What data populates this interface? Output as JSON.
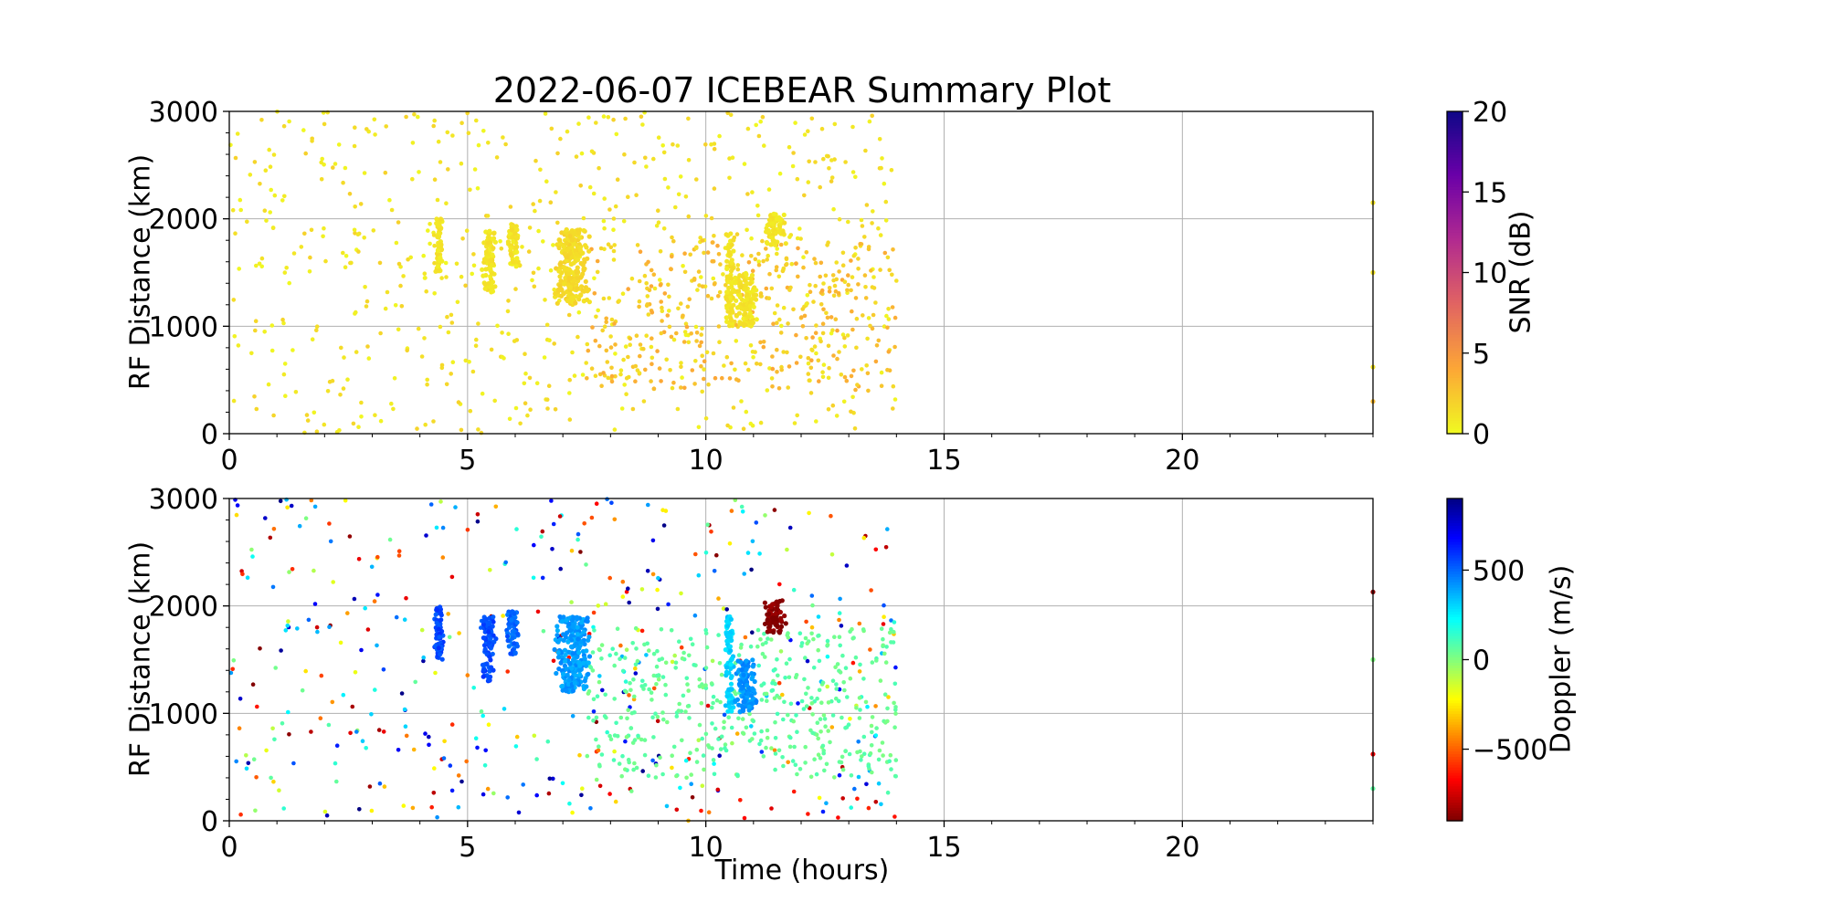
{
  "chart_data": [
    {
      "type": "scatter",
      "title": "2022-06-07 ICEBEAR Summary Plot",
      "xlabel": "",
      "ylabel": "RF Distance (km)",
      "xlim": [
        0,
        24
      ],
      "ylim": [
        0,
        3000
      ],
      "xticks": [
        0,
        5,
        10,
        15,
        20
      ],
      "xtick_labels": [
        "0",
        "5",
        "10",
        "15",
        "20"
      ],
      "yticks": [
        0,
        1000,
        2000,
        3000
      ],
      "ytick_labels": [
        "0",
        "1000",
        "2000",
        "3000"
      ],
      "grid": true,
      "colorbar": {
        "label": "SNR (dB)",
        "range": [
          0,
          20
        ],
        "ticks": [
          0,
          5,
          10,
          15,
          20
        ],
        "tick_labels": [
          "0",
          "5",
          "10",
          "15",
          "20"
        ],
        "colormap": "plasma_r",
        "colors": [
          "#f0f921",
          "#fca636",
          "#e16462",
          "#b12a90",
          "#6a00a8",
          "#0d0887"
        ]
      },
      "clusters": [
        {
          "x": [
            4.3,
            4.5
          ],
          "y": [
            1500,
            2000
          ],
          "value": 1
        },
        {
          "x": [
            5.3,
            5.6
          ],
          "y": [
            1300,
            1900
          ],
          "value": 1
        },
        {
          "x": [
            5.8,
            6.1
          ],
          "y": [
            1550,
            1950
          ],
          "value": 1
        },
        {
          "x": [
            6.8,
            7.6
          ],
          "y": [
            1200,
            1900
          ],
          "value": 1.5
        },
        {
          "x": [
            10.4,
            10.6
          ],
          "y": [
            1000,
            1900
          ],
          "value": 1
        },
        {
          "x": [
            10.6,
            11.1
          ],
          "y": [
            1000,
            1500
          ],
          "value": 1
        },
        {
          "x": [
            11.2,
            11.7
          ],
          "y": [
            1750,
            2050
          ],
          "value": 1
        }
      ],
      "scatter_regions": [
        {
          "x": [
            0,
            14
          ],
          "y": [
            0,
            3000
          ],
          "count": 650,
          "value_range": [
            0,
            2
          ]
        },
        {
          "x": [
            7.5,
            14
          ],
          "y": [
            400,
            1800
          ],
          "count": 350,
          "value_range": [
            1,
            4
          ]
        }
      ],
      "isolated_points": [
        {
          "x": 24,
          "y": 2150,
          "value": 1
        },
        {
          "x": 24,
          "y": 1500,
          "value": 1
        },
        {
          "x": 24,
          "y": 620,
          "value": 1
        },
        {
          "x": 24,
          "y": 300,
          "value": 3
        }
      ]
    },
    {
      "type": "scatter",
      "title": "",
      "xlabel": "Time (hours)",
      "ylabel": "RF Distance (km)",
      "xlim": [
        0,
        24
      ],
      "ylim": [
        0,
        3000
      ],
      "xticks": [
        0,
        5,
        10,
        15,
        20
      ],
      "xtick_labels": [
        "0",
        "5",
        "10",
        "15",
        "20"
      ],
      "yticks": [
        0,
        1000,
        2000,
        3000
      ],
      "ytick_labels": [
        "0",
        "1000",
        "2000",
        "3000"
      ],
      "grid": true,
      "colorbar": {
        "label": "Doppler (m/s)",
        "range": [
          -900,
          900
        ],
        "ticks": [
          -500,
          0,
          500
        ],
        "tick_labels": [
          "−500",
          "0",
          "500"
        ],
        "colormap": "jet_r",
        "colors": [
          "#7f0000",
          "#ff0000",
          "#ff8000",
          "#ffff00",
          "#80ff80",
          "#00ffff",
          "#0080ff",
          "#0000ff",
          "#00007f"
        ]
      },
      "clusters": [
        {
          "x": [
            4.3,
            4.5
          ],
          "y": [
            1500,
            2000
          ],
          "value": 550
        },
        {
          "x": [
            5.3,
            5.6
          ],
          "y": [
            1300,
            1900
          ],
          "value": 550
        },
        {
          "x": [
            5.8,
            6.1
          ],
          "y": [
            1550,
            1950
          ],
          "value": 500
        },
        {
          "x": [
            6.8,
            7.6
          ],
          "y": [
            1200,
            1900
          ],
          "value": 400
        },
        {
          "x": [
            10.4,
            10.6
          ],
          "y": [
            1000,
            1900
          ],
          "value": 300
        },
        {
          "x": [
            10.6,
            11.1
          ],
          "y": [
            1000,
            1500
          ],
          "value": 420
        },
        {
          "x": [
            11.2,
            11.7
          ],
          "y": [
            1750,
            2050
          ],
          "value": -880
        }
      ],
      "scatter_regions": [
        {
          "x": [
            0,
            14
          ],
          "y": [
            0,
            3000
          ],
          "count": 450,
          "value_range": [
            -900,
            900
          ]
        },
        {
          "x": [
            7.5,
            14
          ],
          "y": [
            400,
            1800
          ],
          "count": 450,
          "value_range": [
            0,
            100
          ]
        }
      ],
      "isolated_points": [
        {
          "x": 24,
          "y": 2130,
          "value": -880
        },
        {
          "x": 24,
          "y": 1500,
          "value": 0
        },
        {
          "x": 24,
          "y": 620,
          "value": -700
        },
        {
          "x": 24,
          "y": 300,
          "value": 60
        }
      ]
    }
  ]
}
